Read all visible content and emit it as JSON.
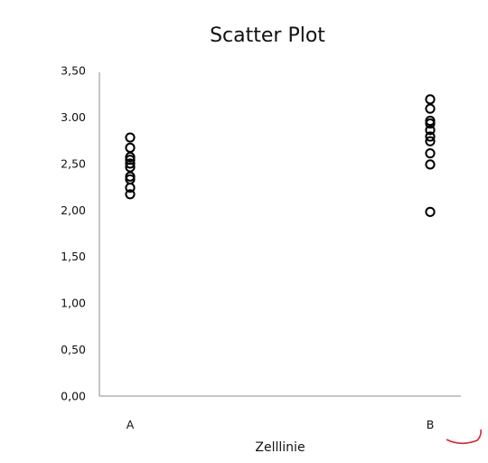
{
  "chart_data": {
    "type": "scatter",
    "title": "Scatter Plot",
    "xlabel": "Zelllinie",
    "ylabel": "",
    "categories": [
      "A",
      "B"
    ],
    "ylim": [
      0,
      3.5
    ],
    "y_ticks": [
      "0,00",
      "0,50",
      "1,00",
      "1,50",
      "2,00",
      "2,50",
      "3.00",
      "3,50"
    ],
    "y_tick_values": [
      0,
      0.5,
      1.0,
      1.5,
      2.0,
      2.5,
      3.0,
      3.5
    ],
    "grid": false,
    "series": [
      {
        "category": "A",
        "values": [
          2.78,
          2.67,
          2.57,
          2.54,
          2.5,
          2.46,
          2.36,
          2.33,
          2.24,
          2.17
        ]
      },
      {
        "category": "B",
        "values": [
          3.19,
          3.09,
          2.96,
          2.93,
          2.86,
          2.79,
          2.74,
          2.61,
          2.49,
          1.98
        ]
      }
    ],
    "marker_style": "hollow-circle",
    "colors": {
      "marker": "#000000",
      "axis": "#8c8c8c",
      "corner_mark": "#d9232e"
    }
  }
}
